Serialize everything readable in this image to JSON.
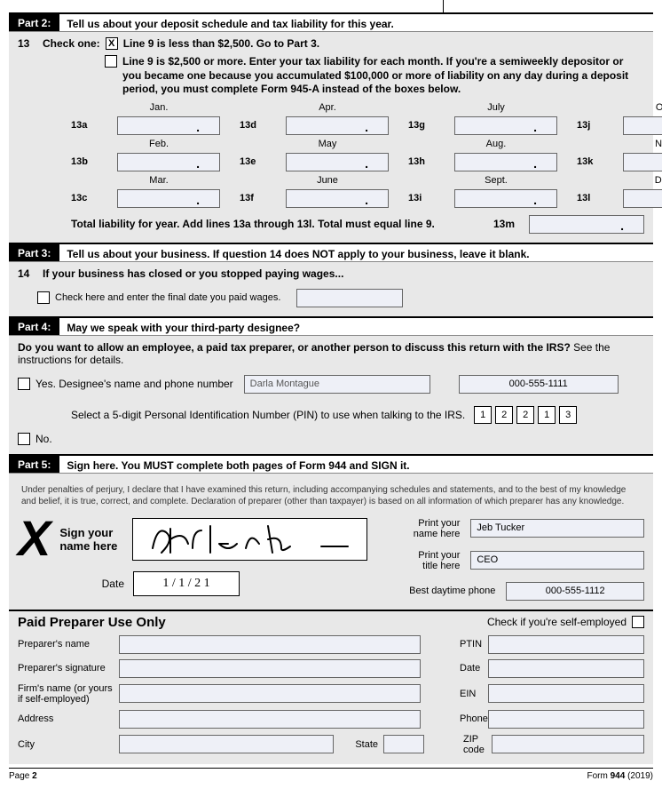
{
  "part2": {
    "label": "Part 2:",
    "title": "Tell us about your deposit schedule and tax liability for this year.",
    "line13_num": "13",
    "check_one": "Check one:",
    "opt1_checked": "X",
    "opt1_text": "Line 9 is less than $2,500. Go to Part 3.",
    "opt2_text": "Line 9 is $2,500 or more. Enter your tax liability for each month. If you're a semiweekly depositor or you became one because you accumulated $100,000 or more of liability on any day during a deposit period, you must complete Form 945-A instead of the boxes below.",
    "months": [
      {
        "lbl": "Jan.",
        "id": "13a"
      },
      {
        "lbl": "Apr.",
        "id": "13d"
      },
      {
        "lbl": "July",
        "id": "13g"
      },
      {
        "lbl": "Oct.",
        "id": "13j"
      },
      {
        "lbl": "Feb.",
        "id": "13b"
      },
      {
        "lbl": "May",
        "id": "13e"
      },
      {
        "lbl": "Aug.",
        "id": "13h"
      },
      {
        "lbl": "Nov.",
        "id": "13k"
      },
      {
        "lbl": "Mar.",
        "id": "13c"
      },
      {
        "lbl": "June",
        "id": "13f"
      },
      {
        "lbl": "Sept.",
        "id": "13i"
      },
      {
        "lbl": "Dec.",
        "id": "13l"
      }
    ],
    "total_text": "Total liability for year. Add lines 13a through 13l. Total must equal line 9.",
    "total_id": "13m"
  },
  "part3": {
    "label": "Part 3:",
    "title": "Tell us about your business. If question 14 does NOT apply to your business, leave it blank.",
    "line14_num": "14",
    "line14_text": "If your business has closed or you stopped paying wages...",
    "check_text": "Check here and enter the final date you paid wages."
  },
  "part4": {
    "label": "Part 4:",
    "title": "May we speak with your third-party designee?",
    "intro": "Do you want to allow an employee, a paid tax preparer, or another person to discuss this return with the IRS?",
    "intro_tail": " See the instructions for details.",
    "yes_text": "Yes.  Designee's name and phone number",
    "designee_name": "Darla Montague",
    "designee_phone": "000-555-1111",
    "pin_text": "Select a 5-digit Personal Identification Number (PIN) to use when talking to the IRS.",
    "pin": [
      "1",
      "2",
      "2",
      "1",
      "3"
    ],
    "no_text": "No."
  },
  "part5": {
    "label": "Part 5:",
    "title": "Sign here. You MUST complete both pages of Form 944 and SIGN it.",
    "perjury": "Under penalties of perjury, I declare that I have examined this return, including accompanying schedules and statements, and to the best of my knowledge and belief, it is true, correct, and complete. Declaration of preparer (other than taxpayer) is based on all information of which preparer has any knowledge.",
    "sign_label": "Sign your\nname here",
    "date_label": "Date",
    "date_value": "1 / 1 / 2 1",
    "print_name_label": "Print your\nname here",
    "print_name": "Jeb Tucker",
    "title_label": "Print your\ntitle here",
    "title_value": "CEO",
    "phone_label": "Best daytime phone",
    "phone_value": "000-555-1112"
  },
  "preparer": {
    "heading": "Paid Preparer Use Only",
    "self_emp": "Check if you're self-employed",
    "rows": [
      {
        "l": "Preparer's name",
        "r": "PTIN"
      },
      {
        "l": "Preparer's signature",
        "r": "Date"
      },
      {
        "l": "Firm's name (or yours if self-employed)",
        "r": "EIN"
      },
      {
        "l": "Address",
        "r": "Phone"
      }
    ],
    "city": "City",
    "state": "State",
    "zip": "ZIP code"
  },
  "footer": {
    "page": "Page ",
    "pagenum": "2",
    "form": "Form ",
    "formnum": "944",
    "year": " (2019)"
  }
}
